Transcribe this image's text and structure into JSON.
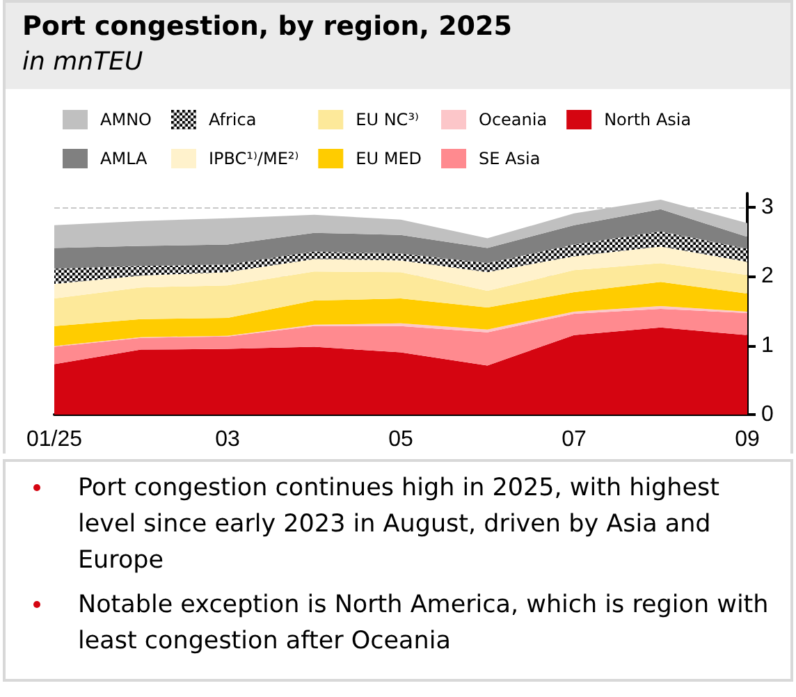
{
  "chart_data": {
    "type": "area",
    "stacked": true,
    "title": "Port congestion, by region, 2025",
    "subtitle": "in mnTEU",
    "categories": [
      "01/25",
      null,
      "03",
      null,
      "05",
      null,
      "07",
      null,
      "09"
    ],
    "ylim": [
      0,
      3.2
    ],
    "yticks": [
      0,
      1,
      2,
      3
    ],
    "grid": "y",
    "legend": "top",
    "series": [
      {
        "name": "North Asia",
        "color": "#d50511",
        "values": [
          0.73,
          0.94,
          0.95,
          0.98,
          0.9,
          0.71,
          1.15,
          1.26,
          1.15
        ]
      },
      {
        "name": "SE Asia",
        "color": "#ff8a8f",
        "values": [
          0.25,
          0.17,
          0.18,
          0.3,
          0.38,
          0.48,
          0.31,
          0.27,
          0.32
        ]
      },
      {
        "name": "Oceania",
        "color": "#fcc6c9",
        "values": [
          0.01,
          0.01,
          0.01,
          0.02,
          0.04,
          0.04,
          0.03,
          0.04,
          0.02
        ]
      },
      {
        "name": "EU MED",
        "color": "#ffcc00",
        "values": [
          0.29,
          0.26,
          0.26,
          0.35,
          0.36,
          0.32,
          0.28,
          0.35,
          0.26
        ]
      },
      {
        "name": "EU NC³⁾",
        "color": "#fde99a",
        "values": [
          0.4,
          0.46,
          0.47,
          0.42,
          0.38,
          0.24,
          0.32,
          0.27,
          0.27
        ]
      },
      {
        "name": "IPBC¹⁾/ME²⁾",
        "color": "#fff2cc",
        "values": [
          0.21,
          0.17,
          0.19,
          0.18,
          0.17,
          0.27,
          0.2,
          0.24,
          0.19
        ]
      },
      {
        "name": "Africa",
        "color": "#000000",
        "values": [
          0.22,
          0.14,
          0.11,
          0.11,
          0.1,
          0.13,
          0.17,
          0.22,
          0.19
        ]
      },
      {
        "name": "AMLA",
        "color": "#808080",
        "values": [
          0.3,
          0.29,
          0.29,
          0.27,
          0.27,
          0.22,
          0.28,
          0.32,
          0.17
        ]
      },
      {
        "name": "AMNO",
        "color": "#c0c0c0",
        "values": [
          0.33,
          0.36,
          0.38,
          0.26,
          0.22,
          0.14,
          0.17,
          0.14,
          0.2
        ]
      }
    ],
    "annotations": [
      "Port congestion continues high in 2025, with highest level since early 2023 in August, driven by Asia and Europe",
      "Notable exception is North America, which is region with least congestion after Oceania"
    ]
  }
}
